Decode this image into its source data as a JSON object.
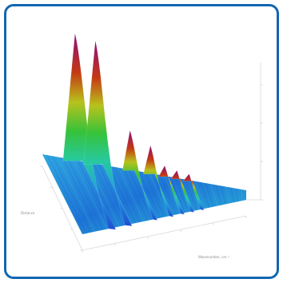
{
  "card": {
    "border_color": "#1266b0",
    "background": "#ffffff"
  },
  "chart_data": {
    "type": "surface",
    "colormap": "jet",
    "grid": false,
    "xlabel": "Wavenumber, cm⁻¹",
    "ylabel": "Distance",
    "zlabel": "",
    "description_of_shape": "3D waterfall surface with sharp ridges running along the depth axis",
    "ridges": [
      {
        "x": 0.16,
        "height": 1.0
      },
      {
        "x": 0.26,
        "height": 0.97
      },
      {
        "x": 0.43,
        "height": 0.31
      },
      {
        "x": 0.53,
        "height": 0.22
      },
      {
        "x": 0.6,
        "height": 0.08
      },
      {
        "x": 0.66,
        "height": 0.06
      },
      {
        "x": 0.72,
        "height": 0.05
      }
    ],
    "x_ticks": [
      "",
      "",
      "",
      "",
      "",
      ""
    ],
    "y_ticks": [
      "",
      "",
      "",
      "",
      ""
    ],
    "z_ticks": [
      "",
      "",
      "",
      ""
    ]
  }
}
